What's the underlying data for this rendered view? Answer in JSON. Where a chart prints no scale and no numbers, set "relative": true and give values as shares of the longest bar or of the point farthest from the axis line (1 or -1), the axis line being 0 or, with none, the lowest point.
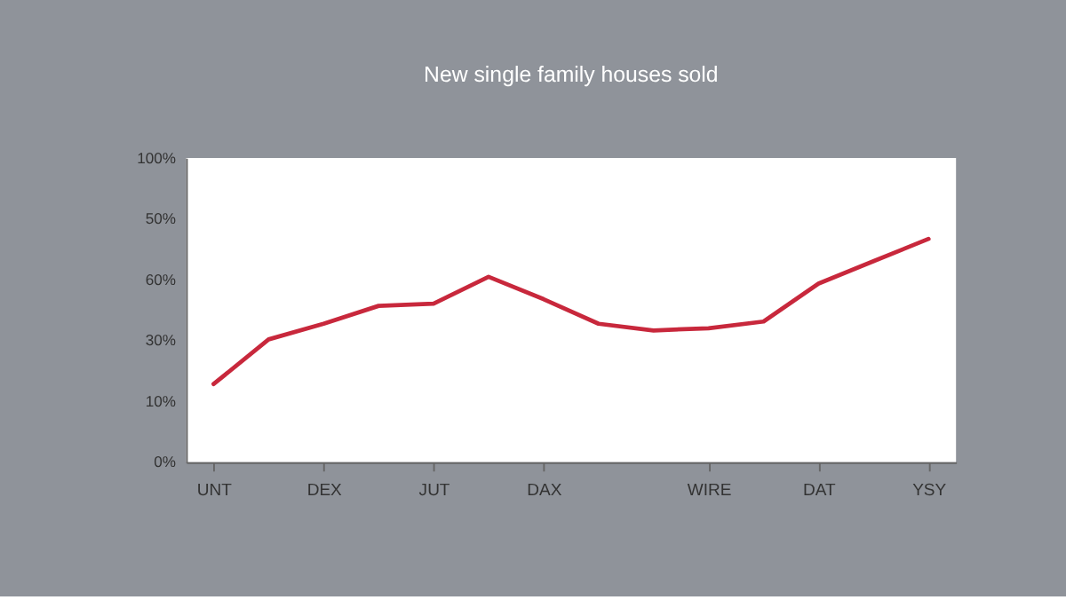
{
  "chart_data": {
    "type": "line",
    "title": "New single family houses sold",
    "relative": true,
    "categories": [
      "UNT",
      null,
      "DEX",
      null,
      "JUT",
      null,
      "DAX",
      null,
      null,
      "WIRE",
      null,
      "DAT",
      null,
      "YSY"
    ],
    "series": [
      {
        "color": "#c8283c",
        "values": [
          0.35,
          0.55,
          0.62,
          0.7,
          0.71,
          0.83,
          0.73,
          0.62,
          0.59,
          0.6,
          0.63,
          0.8,
          0.9,
          1
        ]
      }
    ],
    "annotations": [
      "100%",
      "50%",
      "60%",
      "30%",
      "10%",
      "0%"
    ],
    "grid": false,
    "marker": "none",
    "line_style": "solid"
  }
}
